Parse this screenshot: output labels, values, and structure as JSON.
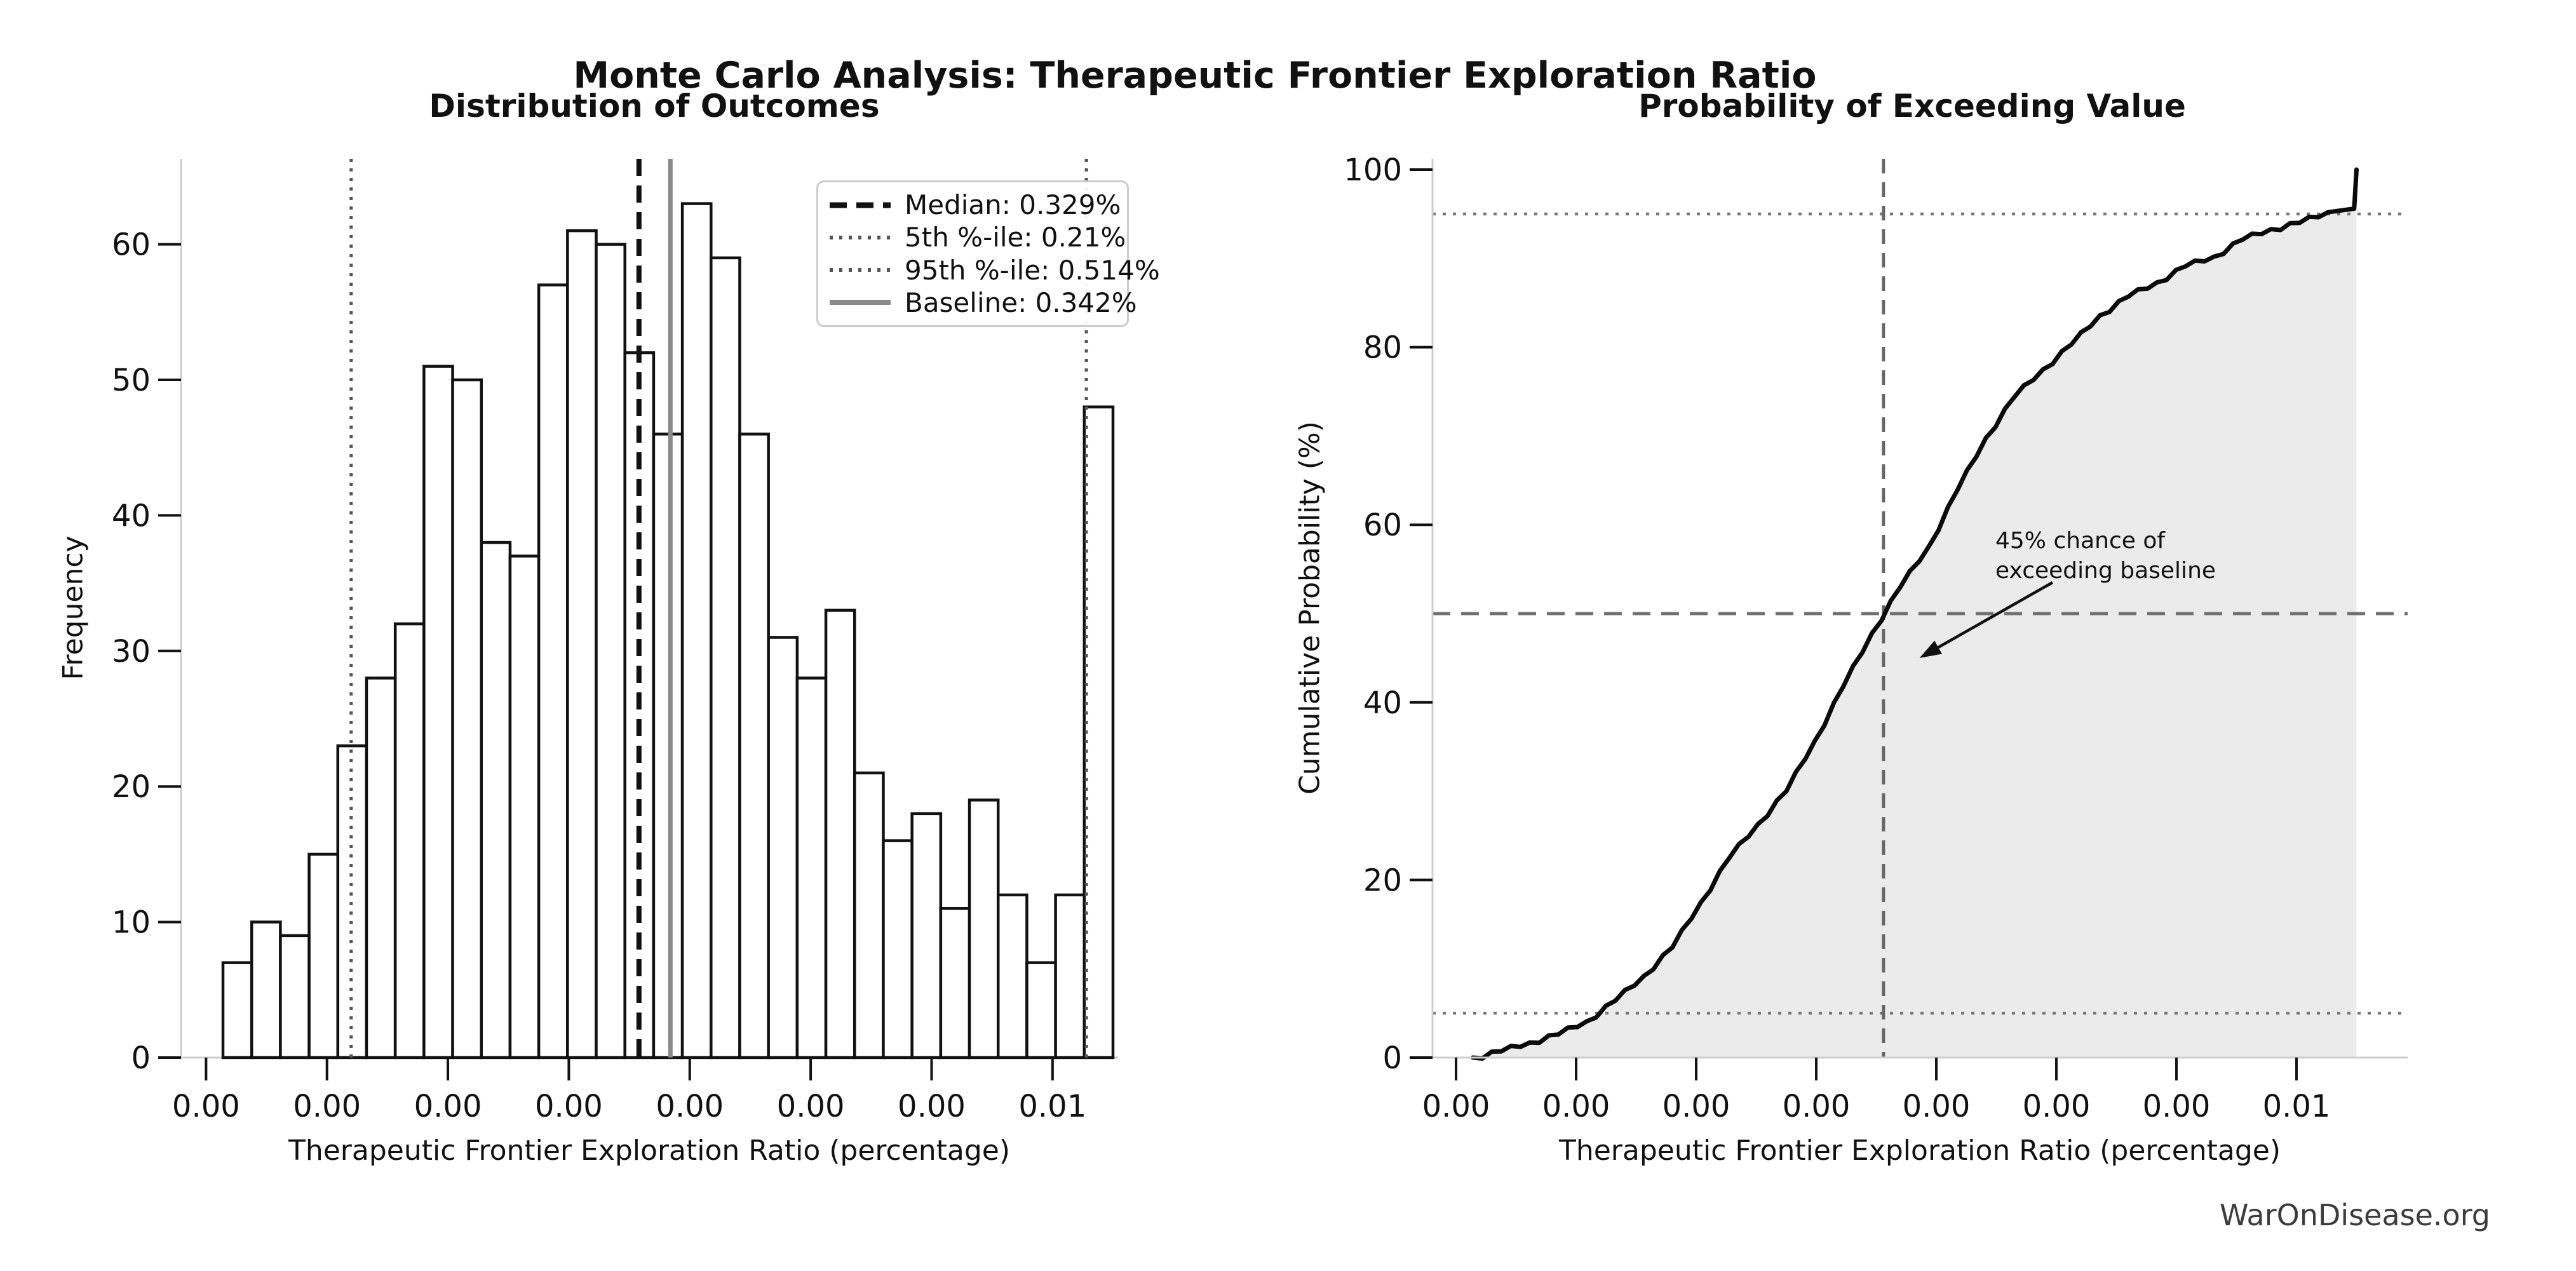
{
  "figure": {
    "suptitle": "Monte Carlo Analysis: Therapeutic Frontier Exploration Ratio",
    "watermark": "WarOnDisease.org"
  },
  "chart_data": [
    {
      "type": "bar",
      "name": "histogram",
      "title": "Distribution of Outcomes",
      "xlabel": "Therapeutic Frontier Exploration Ratio (percentage)",
      "ylabel": "Frequency",
      "x_ticks": {
        "values": [
          0.0015,
          0.002,
          0.0025,
          0.003,
          0.0035,
          0.004,
          0.0045,
          0.005
        ],
        "labels": [
          "0.00",
          "0.00",
          "0.00",
          "0.00",
          "0.00",
          "0.00",
          "0.00",
          "0.01"
        ]
      },
      "y_ticks": [
        0,
        10,
        20,
        30,
        40,
        50,
        60
      ],
      "ylim": [
        0,
        66.3
      ],
      "xlim": [
        0.0014,
        0.00537
      ],
      "grid": false,
      "bins": {
        "start": 0.00157,
        "width": 0.00011871,
        "counts": [
          7,
          10,
          9,
          15,
          23,
          28,
          32,
          51,
          50,
          38,
          37,
          57,
          61,
          60,
          52,
          46,
          63,
          59,
          46,
          31,
          28,
          33,
          21,
          16,
          18,
          11,
          19,
          12,
          7,
          12,
          48
        ],
        "total_samples": 1000
      },
      "markers": [
        {
          "name": "median",
          "value": 0.00329,
          "style": "dashed-black"
        },
        {
          "name": "p5",
          "value": 0.0021,
          "style": "dotted-gray"
        },
        {
          "name": "p95",
          "value": 0.00514,
          "style": "dotted-gray"
        },
        {
          "name": "baseline",
          "value": 0.00342,
          "style": "solid-gray"
        }
      ],
      "legend": {
        "position": "upper right",
        "items": [
          {
            "label": "Median: 0.329%",
            "style": "dashed-black"
          },
          {
            "label": "5th %-ile: 0.21%",
            "style": "dotted-gray"
          },
          {
            "label": "95th %-ile: 0.514%",
            "style": "dotted-gray"
          },
          {
            "label": "Baseline: 0.342%",
            "style": "solid-gray"
          }
        ]
      }
    },
    {
      "type": "line",
      "name": "cdf",
      "title": "Probability of Exceeding Value",
      "xlabel": "Therapeutic Frontier Exploration Ratio (percentage)",
      "ylabel": "Cumulative Probability (%)",
      "x_ticks": {
        "values": [
          0.0015,
          0.002,
          0.0025,
          0.003,
          0.0035,
          0.004,
          0.0045,
          0.005
        ],
        "labels": [
          "0.00",
          "0.00",
          "0.00",
          "0.00",
          "0.00",
          "0.00",
          "0.00",
          "0.01"
        ]
      },
      "y_ticks": [
        0,
        20,
        40,
        60,
        80,
        100
      ],
      "ylim": [
        0,
        101.2
      ],
      "xlim": [
        0.0014,
        0.00546
      ],
      "grid": false,
      "fill_under_curve": true,
      "curve": {
        "edges_start": 0.00157,
        "edge_step": 0.00011871,
        "cumulative_pct": [
          0,
          0.7,
          1.7,
          2.6,
          4.1,
          6.4,
          9.2,
          12.4,
          17.5,
          22.5,
          26.3,
          30.0,
          35.7,
          41.8,
          47.8,
          53.0,
          57.6,
          63.9,
          69.8,
          74.4,
          77.5,
          80.3,
          83.6,
          85.7,
          87.3,
          89.1,
          90.2,
          92.1,
          93.3,
          94.0,
          95.2,
          100.0
        ]
      },
      "ref_lines": {
        "dotted_pct": [
          5,
          95
        ],
        "dashed_pct": [
          50
        ],
        "vline_value": 0.00328
      },
      "annotation": {
        "line1": "45% chance of",
        "line2": "exceeding baseline",
        "arrow_points_to": {
          "value": 0.00343,
          "pct": 45
        }
      }
    }
  ]
}
